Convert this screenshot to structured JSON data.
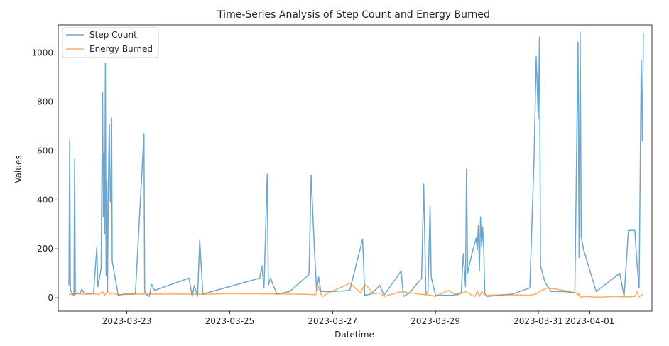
{
  "chart_data": {
    "type": "line",
    "title": "Time-Series Analysis of Step Count and Energy Burned",
    "xlabel": "Datetime",
    "ylabel": "Values",
    "xlim": [
      "2023-03-21T16:00",
      "2023-04-02T05:00"
    ],
    "ylim": [
      -55,
      1115
    ],
    "x_ticks": [
      "2023-03-23",
      "2023-03-25",
      "2023-03-27",
      "2023-03-29",
      "2023-03-31",
      "2023-04-01"
    ],
    "y_ticks": [
      0,
      200,
      400,
      600,
      800,
      1000
    ],
    "grid": false,
    "legend": "upper left",
    "series": [
      {
        "name": "Step Count",
        "color": "#1f77b4",
        "opacity": 0.65,
        "points": [
          [
            "2023-03-21T21:00",
            50
          ],
          [
            "2023-03-21T21:20",
            645
          ],
          [
            "2023-03-21T21:40",
            35
          ],
          [
            "2023-03-21T22:20",
            20
          ],
          [
            "2023-03-21T23:20",
            10
          ],
          [
            "2023-03-21T23:40",
            565
          ],
          [
            "2023-03-22T00:00",
            15
          ],
          [
            "2023-03-22T01:00",
            20
          ],
          [
            "2023-03-22T02:00",
            15
          ],
          [
            "2023-03-22T03:00",
            35
          ],
          [
            "2023-03-22T04:00",
            20
          ],
          [
            "2023-03-22T07:00",
            15
          ],
          [
            "2023-03-22T08:30",
            20
          ],
          [
            "2023-03-22T10:00",
            205
          ],
          [
            "2023-03-22T10:30",
            45
          ],
          [
            "2023-03-22T12:00",
            120
          ],
          [
            "2023-03-22T12:40",
            840
          ],
          [
            "2023-03-22T13:00",
            330
          ],
          [
            "2023-03-22T13:20",
            590
          ],
          [
            "2023-03-22T13:40",
            260
          ],
          [
            "2023-03-22T14:00",
            960
          ],
          [
            "2023-03-22T14:20",
            90
          ],
          [
            "2023-03-22T14:40",
            480
          ],
          [
            "2023-03-22T15:00",
            25
          ],
          [
            "2023-03-22T15:20",
            410
          ],
          [
            "2023-03-22T15:50",
            710
          ],
          [
            "2023-03-22T16:20",
            390
          ],
          [
            "2023-03-22T16:40",
            400
          ],
          [
            "2023-03-22T16:55",
            735
          ],
          [
            "2023-03-22T17:10",
            150
          ],
          [
            "2023-03-22T20:00",
            10
          ],
          [
            "2023-03-22T23:00",
            15
          ],
          [
            "2023-03-23T04:00",
            15
          ],
          [
            "2023-03-23T08:00",
            670
          ],
          [
            "2023-03-23T08:20",
            25
          ],
          [
            "2023-03-23T09:30",
            10
          ],
          [
            "2023-03-23T10:30",
            5
          ],
          [
            "2023-03-23T11:30",
            55
          ],
          [
            "2023-03-23T13:00",
            30
          ],
          [
            "2023-03-24T05:00",
            80
          ],
          [
            "2023-03-24T06:30",
            5
          ],
          [
            "2023-03-24T07:30",
            50
          ],
          [
            "2023-03-24T09:00",
            5
          ],
          [
            "2023-03-24T10:00",
            235
          ],
          [
            "2023-03-24T11:30",
            15
          ],
          [
            "2023-03-25T14:00",
            80
          ],
          [
            "2023-03-25T15:00",
            130
          ],
          [
            "2023-03-25T16:00",
            40
          ],
          [
            "2023-03-25T17:30",
            505
          ],
          [
            "2023-03-25T18:00",
            50
          ],
          [
            "2023-03-25T19:00",
            80
          ],
          [
            "2023-03-25T22:00",
            15
          ],
          [
            "2023-03-26T04:00",
            25
          ],
          [
            "2023-03-26T13:00",
            95
          ],
          [
            "2023-03-26T14:00",
            500
          ],
          [
            "2023-03-26T15:30",
            200
          ],
          [
            "2023-03-26T16:30",
            30
          ],
          [
            "2023-03-26T17:30",
            85
          ],
          [
            "2023-03-26T18:30",
            25
          ],
          [
            "2023-03-27T00:00",
            25
          ],
          [
            "2023-03-27T08:00",
            30
          ],
          [
            "2023-03-27T14:00",
            240
          ],
          [
            "2023-03-27T15:00",
            10
          ],
          [
            "2023-03-27T18:00",
            15
          ],
          [
            "2023-03-27T22:00",
            50
          ],
          [
            "2023-03-28T00:00",
            10
          ],
          [
            "2023-03-28T08:00",
            110
          ],
          [
            "2023-03-28T09:00",
            5
          ],
          [
            "2023-03-28T12:00",
            20
          ],
          [
            "2023-03-28T17:30",
            80
          ],
          [
            "2023-03-28T18:30",
            465
          ],
          [
            "2023-03-28T19:30",
            15
          ],
          [
            "2023-03-28T20:30",
            25
          ],
          [
            "2023-03-28T21:30",
            375
          ],
          [
            "2023-03-28T22:00",
            85
          ],
          [
            "2023-03-29T00:00",
            10
          ],
          [
            "2023-03-29T08:00",
            10
          ],
          [
            "2023-03-29T12:00",
            20
          ],
          [
            "2023-03-29T13:00",
            180
          ],
          [
            "2023-03-29T14:00",
            45
          ],
          [
            "2023-03-29T14:30",
            525
          ],
          [
            "2023-03-29T15:00",
            100
          ],
          [
            "2023-03-29T17:00",
            180
          ],
          [
            "2023-03-29T19:00",
            245
          ],
          [
            "2023-03-29T19:30",
            195
          ],
          [
            "2023-03-29T20:00",
            295
          ],
          [
            "2023-03-29T20:30",
            110
          ],
          [
            "2023-03-29T21:00",
            330
          ],
          [
            "2023-03-29T21:30",
            210
          ],
          [
            "2023-03-29T22:00",
            290
          ],
          [
            "2023-03-29T22:30",
            200
          ],
          [
            "2023-03-29T23:00",
            20
          ],
          [
            "2023-03-30T00:00",
            5
          ],
          [
            "2023-03-30T12:00",
            15
          ],
          [
            "2023-03-30T20:00",
            40
          ],
          [
            "2023-03-30T22:00",
            570
          ],
          [
            "2023-03-30T23:00",
            985
          ],
          [
            "2023-03-31T00:00",
            730
          ],
          [
            "2023-03-31T00:30",
            1065
          ],
          [
            "2023-03-31T01:00",
            130
          ],
          [
            "2023-03-31T03:00",
            65
          ],
          [
            "2023-03-31T06:00",
            25
          ],
          [
            "2023-03-31T12:00",
            25
          ],
          [
            "2023-03-31T17:00",
            20
          ],
          [
            "2023-03-31T18:30",
            1045
          ],
          [
            "2023-03-31T19:00",
            165
          ],
          [
            "2023-03-31T19:30",
            1085
          ],
          [
            "2023-03-31T20:00",
            250
          ],
          [
            "2023-03-31T21:00",
            200
          ],
          [
            "2023-04-01T03:00",
            25
          ],
          [
            "2023-04-01T08:00",
            60
          ],
          [
            "2023-04-01T14:00",
            100
          ],
          [
            "2023-04-01T16:00",
            5
          ],
          [
            "2023-04-01T18:00",
            275
          ],
          [
            "2023-04-01T21:00",
            275
          ],
          [
            "2023-04-01T22:00",
            140
          ],
          [
            "2023-04-01T23:00",
            40
          ],
          [
            "2023-04-02T00:00",
            970
          ],
          [
            "2023-04-02T00:30",
            640
          ],
          [
            "2023-04-02T01:00",
            1080
          ]
        ]
      },
      {
        "name": "Energy Burned",
        "color": "#ff7f0e",
        "opacity": 0.65,
        "points": [
          [
            "2023-03-21T21:00",
            15
          ],
          [
            "2023-03-21T23:00",
            12
          ],
          [
            "2023-03-22T01:00",
            18
          ],
          [
            "2023-03-22T04:00",
            14
          ],
          [
            "2023-03-22T08:00",
            16
          ],
          [
            "2023-03-22T11:00",
            13
          ],
          [
            "2023-03-22T12:40",
            25
          ],
          [
            "2023-03-22T13:40",
            10
          ],
          [
            "2023-03-22T14:40",
            22
          ],
          [
            "2023-03-22T15:20",
            28
          ],
          [
            "2023-03-22T16:00",
            15
          ],
          [
            "2023-03-22T17:00",
            20
          ],
          [
            "2023-03-22T20:00",
            12
          ],
          [
            "2023-03-23T04:00",
            15
          ],
          [
            "2023-03-23T12:00",
            15
          ],
          [
            "2023-03-24T00:00",
            15
          ],
          [
            "2023-03-24T12:00",
            14
          ],
          [
            "2023-03-25T00:00",
            17
          ],
          [
            "2023-03-25T12:00",
            16
          ],
          [
            "2023-03-26T00:00",
            15
          ],
          [
            "2023-03-26T12:00",
            14
          ],
          [
            "2023-03-26T16:00",
            12
          ],
          [
            "2023-03-26T17:30",
            45
          ],
          [
            "2023-03-26T18:30",
            15
          ],
          [
            "2023-03-26T19:30",
            5
          ],
          [
            "2023-03-26T22:00",
            20
          ],
          [
            "2023-03-27T06:00",
            50
          ],
          [
            "2023-03-27T08:00",
            60
          ],
          [
            "2023-03-27T13:00",
            20
          ],
          [
            "2023-03-27T15:00",
            55
          ],
          [
            "2023-03-27T17:00",
            40
          ],
          [
            "2023-03-27T19:00",
            15
          ],
          [
            "2023-03-27T22:00",
            20
          ],
          [
            "2023-03-28T00:00",
            5
          ],
          [
            "2023-03-28T08:00",
            25
          ],
          [
            "2023-03-28T16:00",
            15
          ],
          [
            "2023-03-28T22:00",
            10
          ],
          [
            "2023-03-29T00:00",
            5
          ],
          [
            "2023-03-29T06:00",
            30
          ],
          [
            "2023-03-29T10:00",
            10
          ],
          [
            "2023-03-29T14:00",
            25
          ],
          [
            "2023-03-29T17:00",
            10
          ],
          [
            "2023-03-29T18:30",
            5
          ],
          [
            "2023-03-29T19:30",
            28
          ],
          [
            "2023-03-29T20:30",
            5
          ],
          [
            "2023-03-29T21:30",
            25
          ],
          [
            "2023-03-29T23:00",
            10
          ],
          [
            "2023-03-30T08:00",
            12
          ],
          [
            "2023-03-30T20:00",
            10
          ],
          [
            "2023-03-30T23:00",
            15
          ],
          [
            "2023-03-31T00:30",
            25
          ],
          [
            "2023-03-31T04:00",
            40
          ],
          [
            "2023-03-31T12:00",
            30
          ],
          [
            "2023-03-31T17:30",
            20
          ],
          [
            "2023-03-31T18:30",
            10
          ],
          [
            "2023-03-31T19:00",
            18
          ],
          [
            "2023-03-31T19:30",
            0
          ],
          [
            "2023-03-31T21:00",
            5
          ],
          [
            "2023-04-01T04:00",
            2
          ],
          [
            "2023-04-01T12:00",
            5
          ],
          [
            "2023-04-01T17:00",
            3
          ],
          [
            "2023-04-01T21:00",
            5
          ],
          [
            "2023-04-01T22:00",
            25
          ],
          [
            "2023-04-01T23:00",
            3
          ],
          [
            "2023-04-02T00:00",
            10
          ],
          [
            "2023-04-02T01:00",
            15
          ]
        ]
      }
    ]
  }
}
